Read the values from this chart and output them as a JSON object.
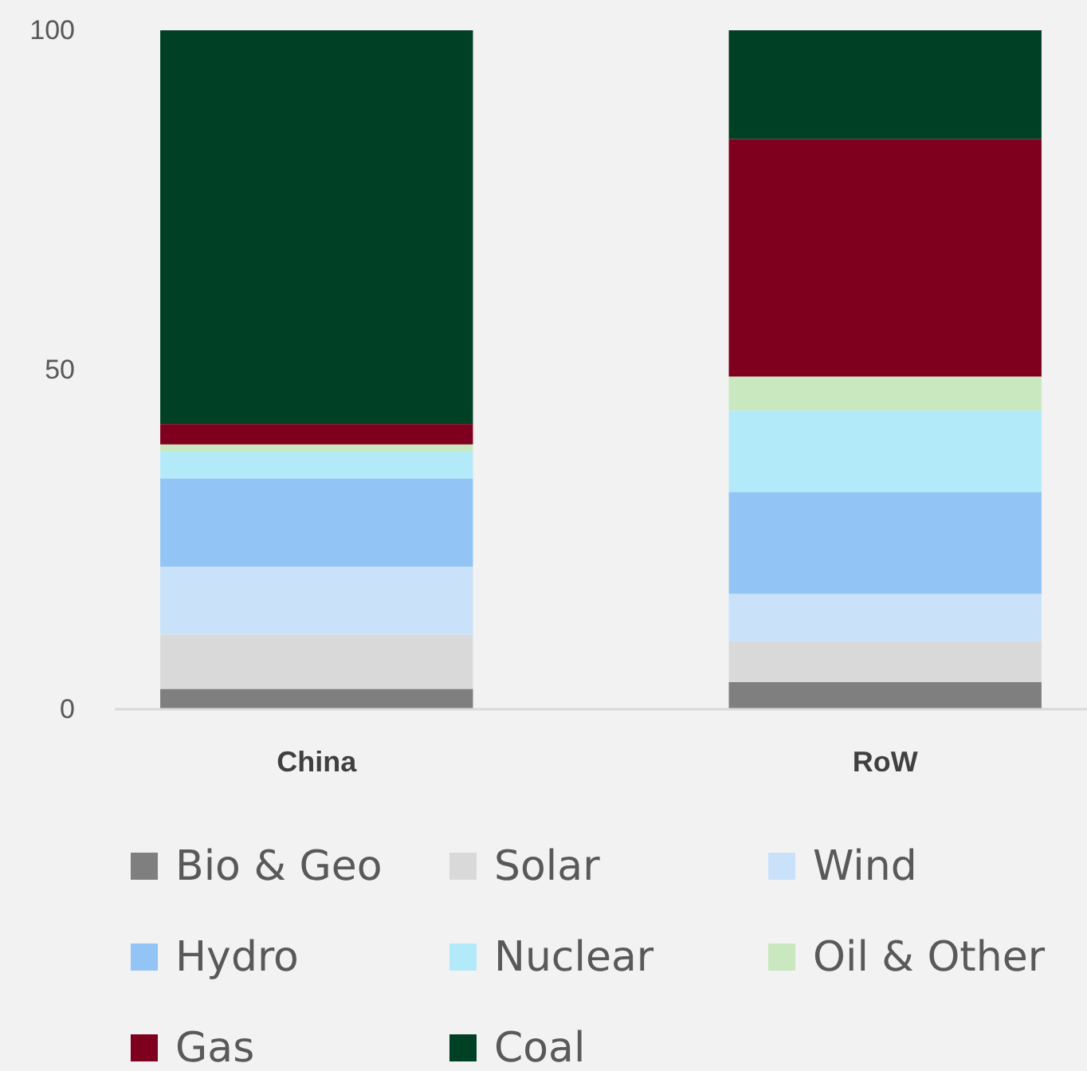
{
  "chart_data": {
    "type": "bar",
    "stacked": true,
    "categories": [
      "China",
      "RoW"
    ],
    "series": [
      {
        "name": "Bio & Geo",
        "color": "#7f7f7f",
        "values": [
          3,
          4
        ]
      },
      {
        "name": "Solar",
        "color": "#d9d9d9",
        "values": [
          8,
          6
        ]
      },
      {
        "name": "Wind",
        "color": "#c9e2f9",
        "values": [
          10,
          7
        ]
      },
      {
        "name": "Hydro",
        "color": "#92c5f5",
        "values": [
          13,
          15
        ]
      },
      {
        "name": "Nuclear",
        "color": "#b3eaf9",
        "values": [
          4,
          12
        ]
      },
      {
        "name": "Oil & Other",
        "color": "#c9e8c0",
        "values": [
          1,
          5
        ]
      },
      {
        "name": "Gas",
        "color": "#7e001e",
        "values": [
          3,
          35
        ]
      },
      {
        "name": "Coal",
        "color": "#004025",
        "values": [
          58,
          16
        ]
      }
    ],
    "ylim": [
      0,
      100
    ],
    "yticks": [
      0,
      50,
      100
    ],
    "grid": false,
    "legend": "bottom"
  }
}
